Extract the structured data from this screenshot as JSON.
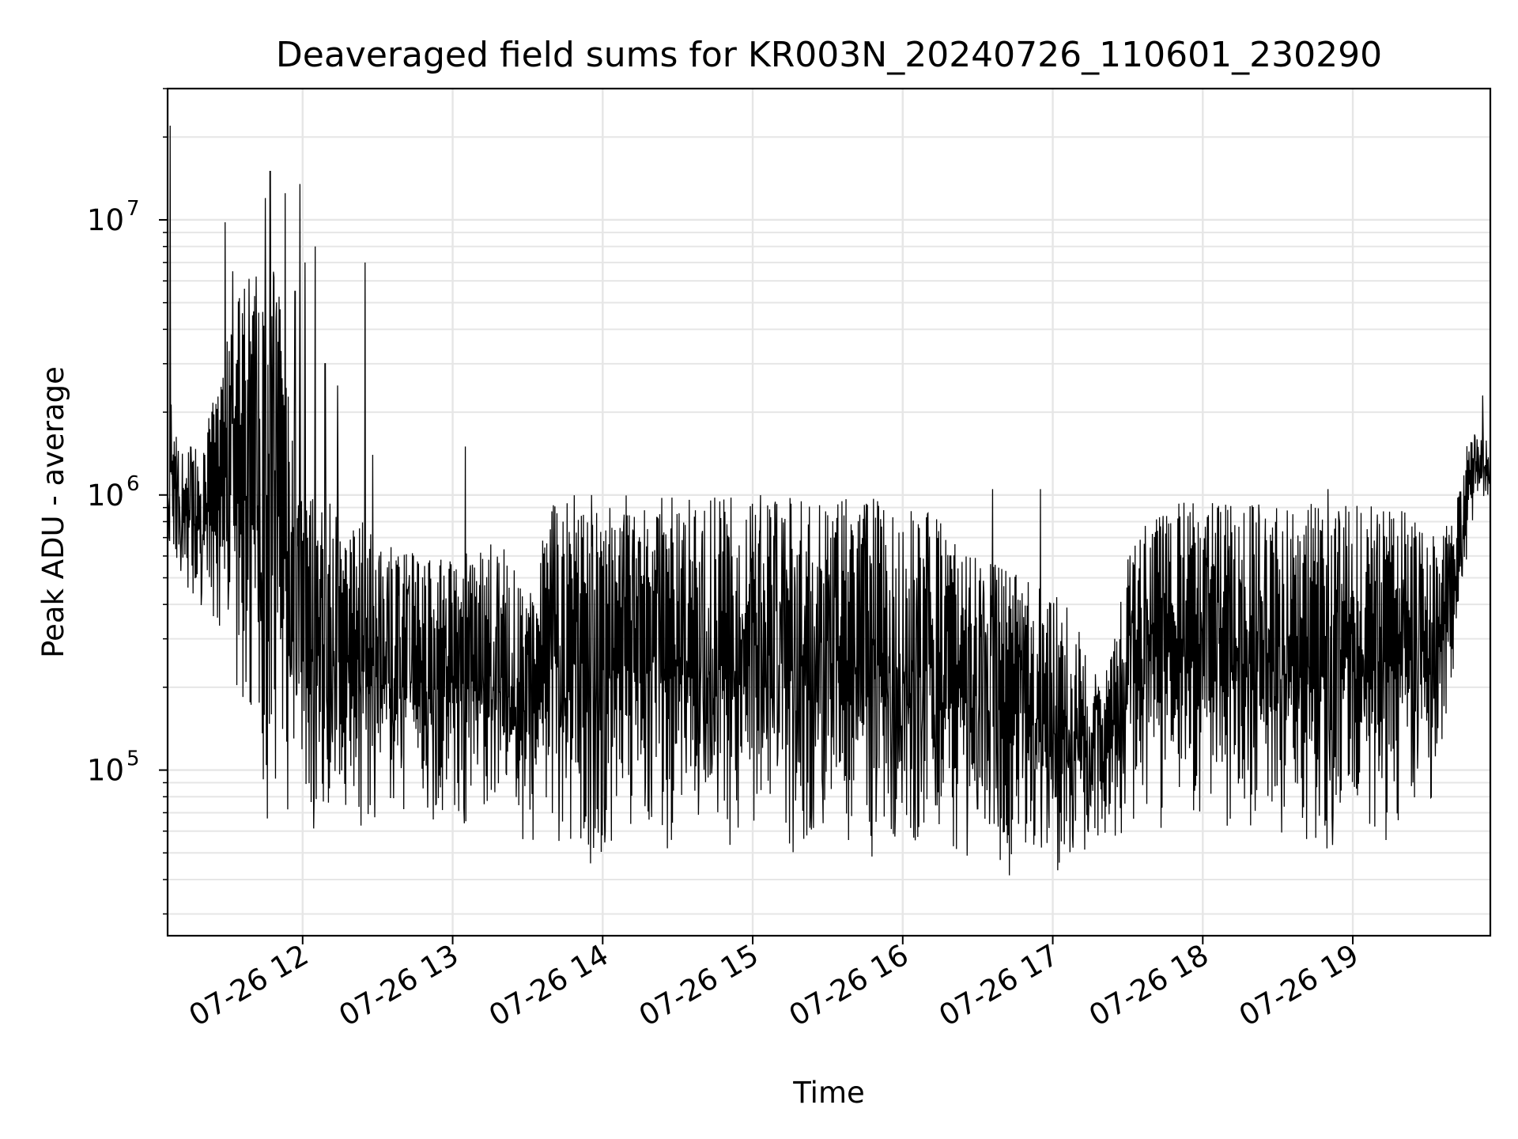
{
  "chart_data": {
    "type": "line",
    "title": "Deaveraged field sums for KR003N_20240726_110601_230290",
    "xlabel": "Time",
    "ylabel": "Peak ADU - average",
    "yscale": "log",
    "xlim": [
      "2024-07-26T11:06:00",
      "2024-07-26T19:55:00"
    ],
    "ylim": [
      25000,
      30000000
    ],
    "grid": true,
    "x_tick_labels": [
      "07-26 12",
      "07-26 13",
      "07-26 14",
      "07-26 15",
      "07-26 16",
      "07-26 17",
      "07-26 18",
      "07-26 19"
    ],
    "y_ticks": [
      {
        "value": 100000,
        "base": "10",
        "exp": "5"
      },
      {
        "value": 1000000,
        "base": "10",
        "exp": "6"
      },
      {
        "value": 10000000,
        "base": "10",
        "exp": "7"
      }
    ],
    "series": [
      {
        "color": "#000000",
        "envelope": {
          "t": [
            "11:06",
            "11:10",
            "11:20",
            "11:30",
            "11:40",
            "11:50",
            "12:00",
            "12:10",
            "12:20",
            "12:30",
            "12:40",
            "12:50",
            "13:00",
            "13:10",
            "13:20",
            "13:30",
            "13:40",
            "13:50",
            "14:00",
            "14:10",
            "14:20",
            "14:30",
            "14:40",
            "14:50",
            "15:00",
            "15:10",
            "15:20",
            "15:30",
            "15:40",
            "15:50",
            "16:00",
            "16:10",
            "16:20",
            "16:30",
            "16:40",
            "16:50",
            "17:00",
            "17:10",
            "17:20",
            "17:30",
            "17:40",
            "17:50",
            "18:00",
            "18:10",
            "18:20",
            "18:30",
            "18:40",
            "18:50",
            "19:00",
            "19:10",
            "19:20",
            "19:30",
            "19:40",
            "19:45",
            "19:50",
            "19:55"
          ],
          "low": [
            700000,
            500000,
            350000,
            250000,
            90000,
            50000,
            50000,
            55000,
            60000,
            60000,
            70000,
            60000,
            65000,
            60000,
            55000,
            50000,
            50000,
            50000,
            40000,
            45000,
            50000,
            50000,
            48000,
            50000,
            55000,
            50000,
            50000,
            50000,
            50000,
            45000,
            50000,
            50000,
            45000,
            48000,
            40000,
            45000,
            40000,
            45000,
            55000,
            60000,
            60000,
            55000,
            55000,
            55000,
            50000,
            50000,
            50000,
            50000,
            55000,
            50000,
            60000,
            60000,
            200000,
            500000,
            1000000,
            900000
          ],
          "high": [
            3000000,
            1500000,
            1500000,
            4000000,
            7000000,
            7000000,
            1000000,
            1000000,
            1000000,
            700000,
            650000,
            600000,
            600000,
            650000,
            700000,
            400000,
            1000000,
            1000000,
            1000000,
            1000000,
            1000000,
            1000000,
            1000000,
            1000000,
            1000000,
            1000000,
            1000000,
            1000000,
            1000000,
            1000000,
            950000,
            900000,
            700000,
            600000,
            550000,
            500000,
            450000,
            350000,
            200000,
            600000,
            900000,
            950000,
            950000,
            950000,
            950000,
            950000,
            950000,
            950000,
            950000,
            950000,
            900000,
            700000,
            800000,
            1500000,
            1800000,
            1500000
          ],
          "spikes": [
            {
              "t": "11:07",
              "value": 22000000
            },
            {
              "t": "11:29",
              "value": 9800000
            },
            {
              "t": "11:32",
              "value": 6500000
            },
            {
              "t": "11:40",
              "value": 4500000
            },
            {
              "t": "11:45",
              "value": 12000000
            },
            {
              "t": "11:47",
              "value": 15000000
            },
            {
              "t": "11:53",
              "value": 12500000
            },
            {
              "t": "11:57",
              "value": 5500000
            },
            {
              "t": "11:59",
              "value": 13500000
            },
            {
              "t": "12:01",
              "value": 7000000
            },
            {
              "t": "12:05",
              "value": 8000000
            },
            {
              "t": "12:09",
              "value": 3000000
            },
            {
              "t": "12:14",
              "value": 2500000
            },
            {
              "t": "12:25",
              "value": 7000000
            },
            {
              "t": "12:28",
              "value": 1400000
            },
            {
              "t": "13:05",
              "value": 1500000
            },
            {
              "t": "16:36",
              "value": 1050000
            },
            {
              "t": "16:55",
              "value": 1050000
            },
            {
              "t": "18:50",
              "value": 1050000
            },
            {
              "t": "19:52",
              "value": 2300000
            }
          ]
        }
      }
    ]
  }
}
